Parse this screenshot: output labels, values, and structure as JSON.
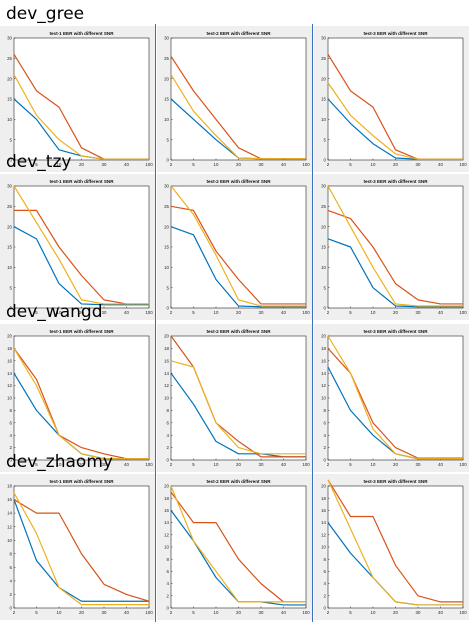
{
  "sections": [
    {
      "title": "dev_gree",
      "charts": [
        {
          "title": "test-1 EER with different SNR",
          "ylim": [
            0,
            30
          ],
          "yticks": [
            0,
            5,
            10,
            15,
            20,
            25,
            30
          ],
          "series": [
            {
              "values": [
                15,
                10,
                2.5,
                1,
                0.2,
                0.2,
                0.2
              ]
            },
            {
              "values": [
                26,
                17,
                13,
                3,
                0.2,
                0.2,
                0.2
              ]
            },
            {
              "values": [
                21,
                11,
                5,
                1,
                0.2,
                0.2,
                0.2
              ]
            }
          ]
        },
        {
          "title": "test-2 EER with different SNR",
          "ylim": [
            0,
            30
          ],
          "yticks": [
            0,
            5,
            10,
            15,
            20,
            25,
            30
          ],
          "series": [
            {
              "values": [
                15,
                10,
                5,
                0.5,
                0.3,
                0.3,
                0.3
              ]
            },
            {
              "values": [
                25.5,
                17,
                10,
                3,
                0.3,
                0.3,
                0.3
              ]
            },
            {
              "values": [
                21,
                12,
                6,
                0.5,
                0.3,
                0.3,
                0.3
              ]
            }
          ]
        },
        {
          "title": "test-3 EER with different SNR",
          "ylim": [
            0,
            30
          ],
          "yticks": [
            0,
            5,
            10,
            15,
            20,
            25,
            30
          ],
          "series": [
            {
              "values": [
                15,
                9,
                4,
                0.5,
                0.2,
                0.2,
                0.2
              ]
            },
            {
              "values": [
                26,
                17,
                13,
                2.5,
                0.2,
                0.2,
                0.2
              ]
            },
            {
              "values": [
                19,
                11,
                6,
                1.5,
                0.2,
                0.2,
                0.2
              ]
            }
          ]
        }
      ]
    },
    {
      "title": "dev_tzy",
      "charts": [
        {
          "title": "test-1 EER with different SNR",
          "ylim": [
            0,
            30
          ],
          "yticks": [
            0,
            5,
            10,
            15,
            20,
            25,
            30
          ],
          "series": [
            {
              "values": [
                20,
                17,
                6,
                1,
                0.8,
                0.8,
                0.8
              ]
            },
            {
              "values": [
                24,
                24,
                15,
                8,
                2,
                1,
                1
              ]
            },
            {
              "values": [
                30,
                21,
                12,
                2,
                1,
                1,
                1
              ]
            }
          ]
        },
        {
          "title": "test-2 EER with different SNR",
          "ylim": [
            0,
            30
          ],
          "yticks": [
            0,
            5,
            10,
            15,
            20,
            25,
            30
          ],
          "series": [
            {
              "values": [
                20,
                18,
                7,
                0.5,
                0.3,
                0.3,
                0.3
              ]
            },
            {
              "values": [
                25,
                24,
                14,
                7,
                1,
                1,
                1
              ]
            },
            {
              "values": [
                30,
                23,
                13,
                2,
                0.5,
                0.5,
                0.5
              ]
            }
          ]
        },
        {
          "title": "test-3 EER with different SNR",
          "ylim": [
            0,
            30
          ],
          "yticks": [
            0,
            5,
            10,
            15,
            20,
            25,
            30
          ],
          "series": [
            {
              "values": [
                17,
                15,
                5,
                0.5,
                0.3,
                0.3,
                0.3
              ]
            },
            {
              "values": [
                24,
                22,
                15,
                6,
                2,
                1,
                1
              ]
            },
            {
              "values": [
                30,
                20,
                10,
                1,
                0.5,
                0.5,
                0.5
              ]
            }
          ]
        }
      ]
    },
    {
      "title": "dev_wangd",
      "charts": [
        {
          "title": "test-1 EER with different SNR",
          "ylim": [
            0,
            20
          ],
          "yticks": [
            0,
            2,
            4,
            6,
            8,
            10,
            12,
            14,
            16,
            18,
            20
          ],
          "series": [
            {
              "values": [
                14,
                8,
                4,
                1,
                0.2,
                0.2,
                0.2
              ]
            },
            {
              "values": [
                18,
                13,
                4,
                2,
                1,
                0.2,
                0.2
              ]
            },
            {
              "values": [
                18,
                12,
                4,
                1,
                0.2,
                0.2,
                0.2
              ]
            }
          ]
        },
        {
          "title": "test-2 EER with different SNR",
          "ylim": [
            0,
            20
          ],
          "yticks": [
            0,
            2,
            4,
            6,
            8,
            10,
            12,
            14,
            16,
            18,
            20
          ],
          "series": [
            {
              "values": [
                14,
                9,
                3,
                1,
                1,
                0.5,
                0.5
              ]
            },
            {
              "values": [
                20,
                15,
                6,
                3,
                0.5,
                0.5,
                0.5
              ]
            },
            {
              "values": [
                16,
                15,
                6,
                2,
                1,
                1,
                1
              ]
            }
          ]
        },
        {
          "title": "test-3 EER with different SNR",
          "ylim": [
            0,
            20
          ],
          "yticks": [
            0,
            2,
            4,
            6,
            8,
            10,
            12,
            14,
            16,
            18,
            20
          ],
          "series": [
            {
              "values": [
                15,
                8,
                4,
                1,
                0.2,
                0.2,
                0.2
              ]
            },
            {
              "values": [
                18,
                14,
                6,
                2,
                0.3,
                0.3,
                0.3
              ]
            },
            {
              "values": [
                20,
                14,
                5,
                1,
                0.2,
                0.2,
                0.2
              ]
            }
          ]
        }
      ]
    },
    {
      "title": "dev_zhaomy",
      "charts": [
        {
          "title": "test-1 EER with different SNR",
          "ylim": [
            0,
            18
          ],
          "yticks": [
            0,
            2,
            4,
            6,
            8,
            10,
            12,
            14,
            16,
            18
          ],
          "series": [
            {
              "values": [
                16,
                7,
                3,
                1,
                1,
                1,
                1
              ]
            },
            {
              "values": [
                16,
                14,
                14,
                8,
                3.5,
                2,
                1
              ]
            },
            {
              "values": [
                17,
                11,
                3,
                0.5,
                0.5,
                0.5,
                0.5
              ]
            }
          ]
        },
        {
          "title": "test-2 EER with different SNR",
          "ylim": [
            0,
            20
          ],
          "yticks": [
            0,
            2,
            4,
            6,
            8,
            10,
            12,
            14,
            16,
            18,
            20
          ],
          "series": [
            {
              "values": [
                16,
                11,
                5,
                1,
                1,
                0.5,
                0.5
              ]
            },
            {
              "values": [
                19,
                14,
                14,
                8,
                4,
                1,
                1
              ]
            },
            {
              "values": [
                20,
                11,
                6,
                1,
                1,
                1,
                1
              ]
            }
          ]
        },
        {
          "title": "test-3 EER with different SNR",
          "ylim": [
            0,
            20
          ],
          "yticks": [
            0,
            2,
            4,
            6,
            8,
            10,
            12,
            14,
            16,
            18,
            20
          ],
          "series": [
            {
              "values": [
                14,
                9,
                5,
                1,
                0.5,
                0.5,
                0.5
              ]
            },
            {
              "values": [
                21,
                15,
                15,
                7,
                2,
                1,
                1
              ]
            },
            {
              "values": [
                21,
                13,
                5,
                1,
                0.5,
                0.5,
                0.5
              ]
            }
          ]
        }
      ]
    }
  ],
  "chart_data": {
    "type": "line",
    "x": [
      2,
      5,
      10,
      20,
      30,
      40,
      100
    ],
    "series_colors": [
      "#0072BD",
      "#D95319",
      "#EDB120"
    ]
  }
}
